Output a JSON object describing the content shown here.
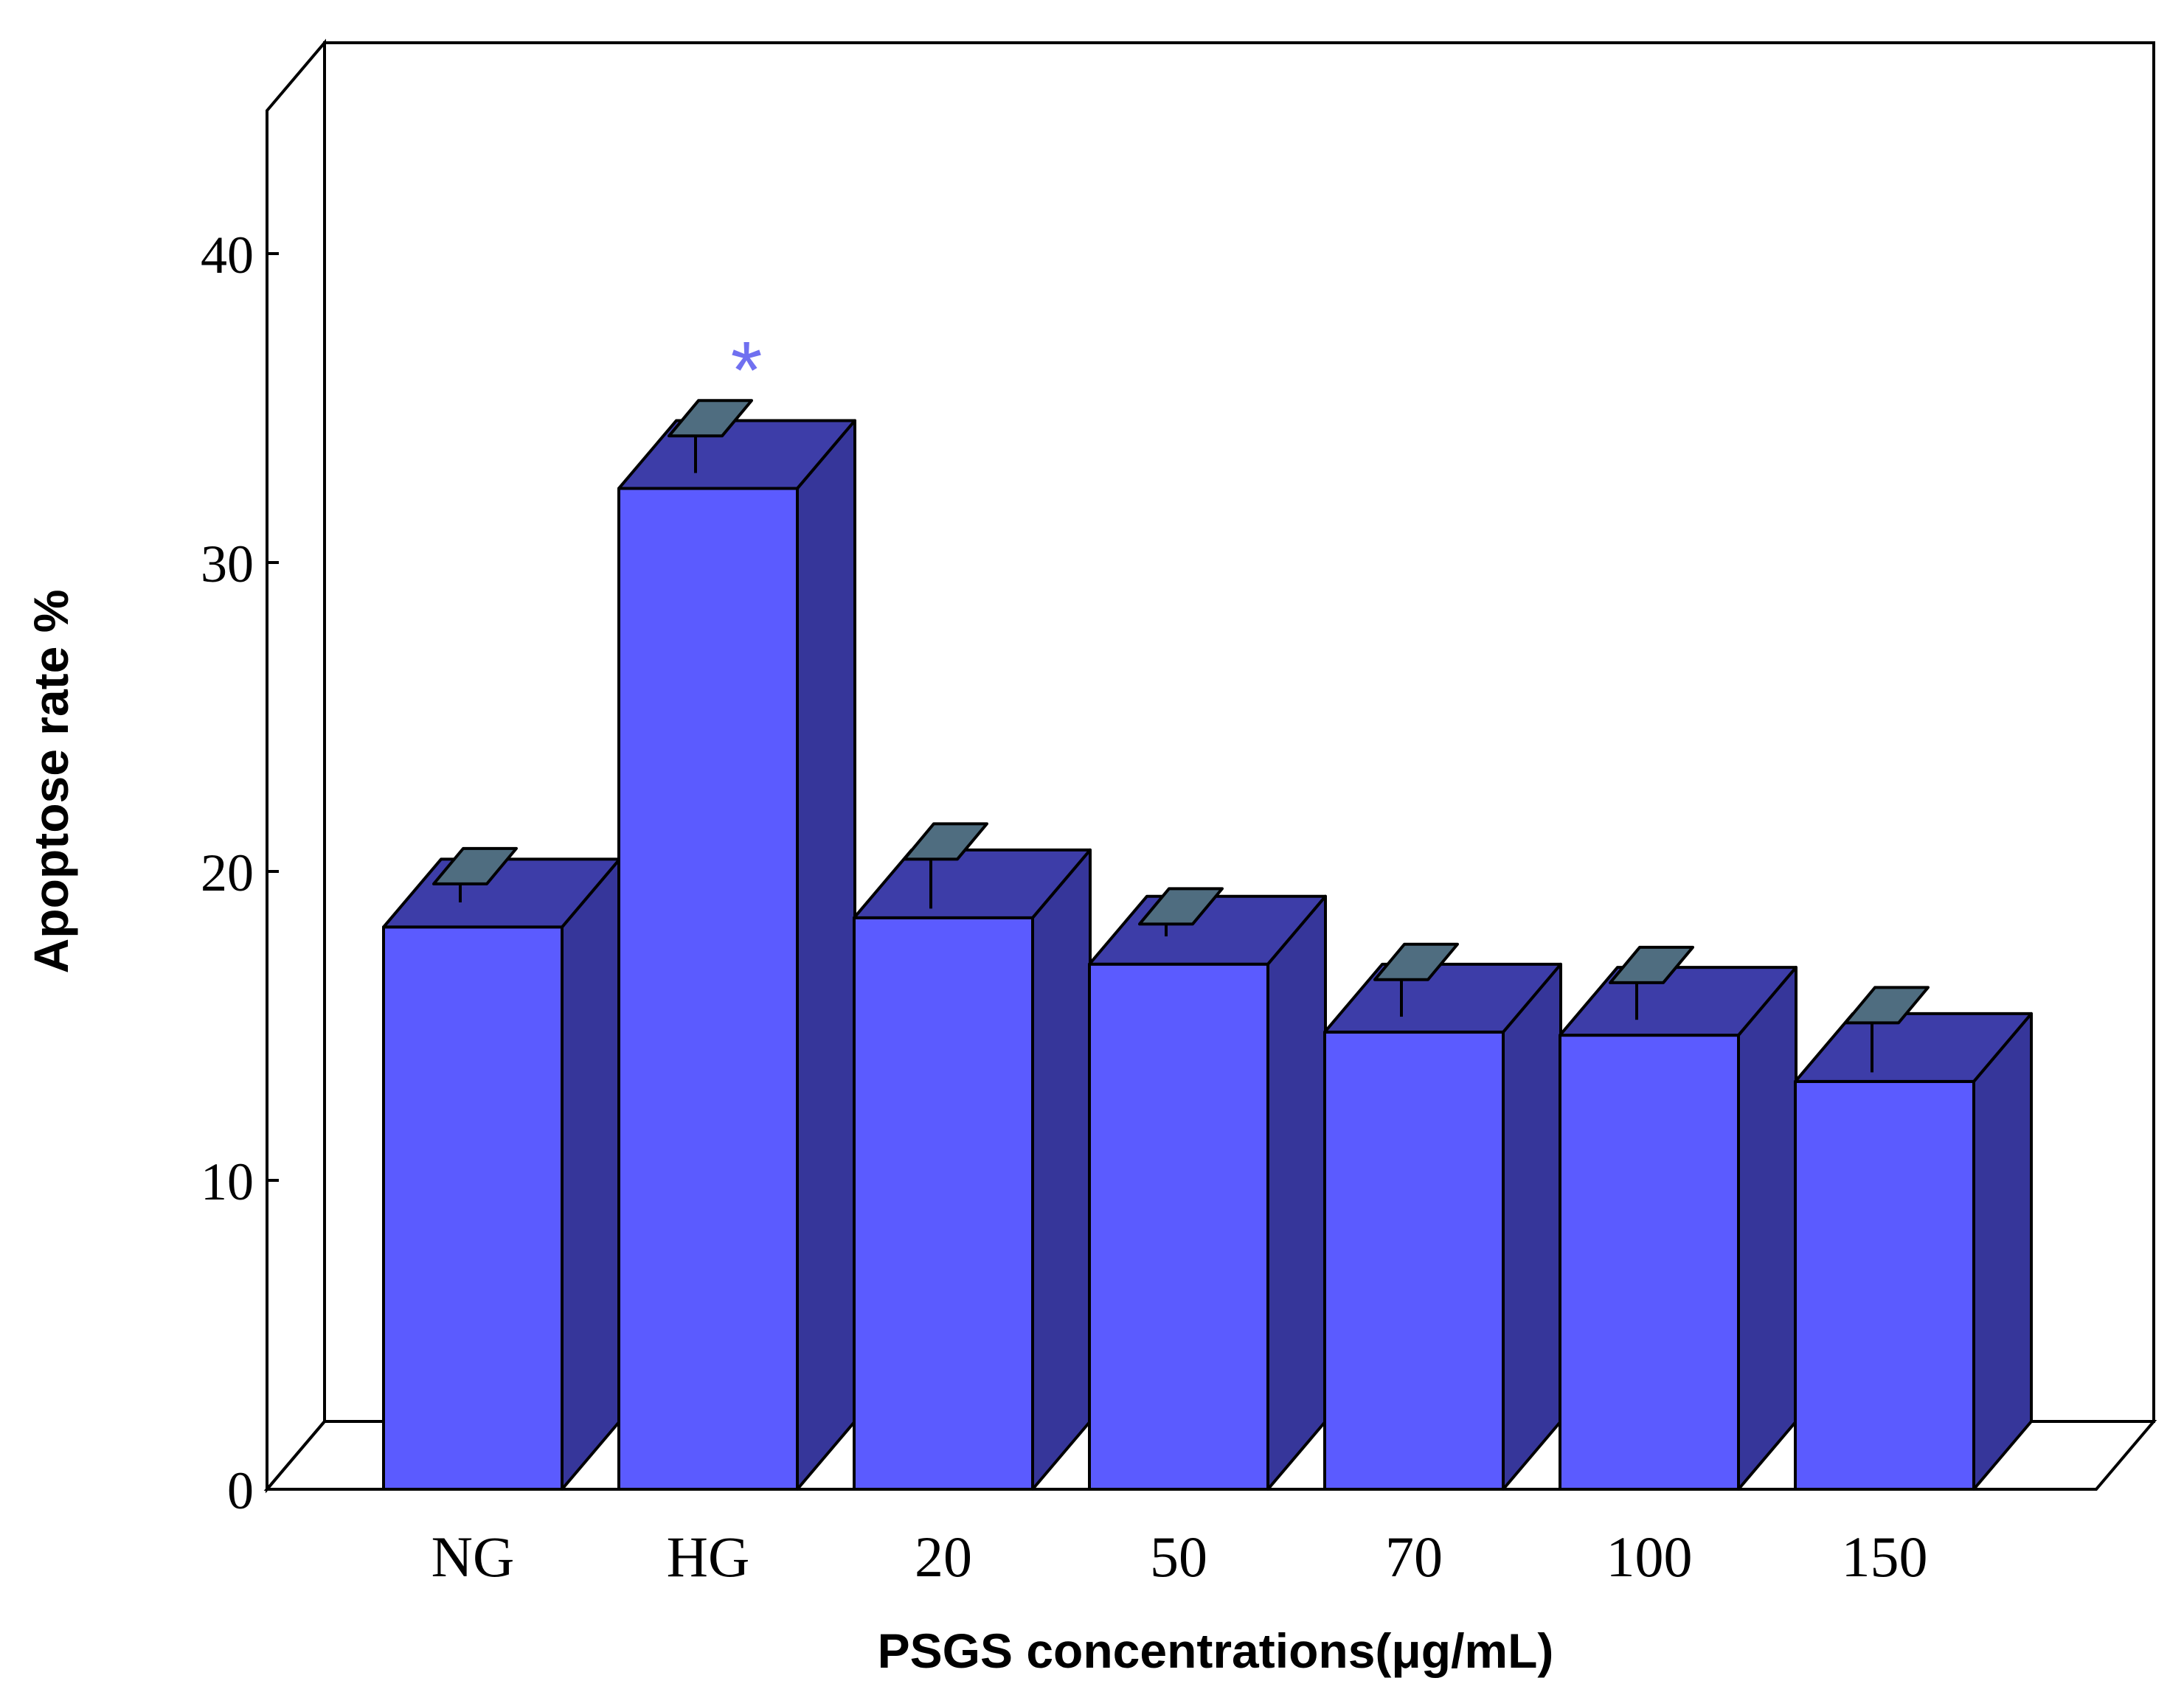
{
  "chart_data": {
    "type": "bar",
    "xlabel": "PSGS concentrations(μg/mL)",
    "ylabel": "Apoptose rate %",
    "categories": [
      "NG",
      "HG",
      "20",
      "50",
      "70",
      "100",
      "150"
    ],
    "values": [
      18.2,
      32.4,
      18.5,
      17.0,
      14.8,
      14.7,
      13.2
    ],
    "error_bars": [
      0.3,
      0.6,
      0.8,
      0.2,
      0.6,
      0.6,
      0.8
    ],
    "y_ticks": [
      "0",
      "10",
      "20",
      "30",
      "40"
    ],
    "ylim": [
      0,
      45
    ],
    "annotations": [
      {
        "category": "HG",
        "text": "*"
      }
    ],
    "grid": false,
    "legend": "none",
    "colors": {
      "bar_front": "#5b5bff",
      "bar_side": "#36369a",
      "bar_top": "#3d3da8",
      "error_cap": "#4f6d80",
      "annotation": "#7070f0"
    }
  }
}
